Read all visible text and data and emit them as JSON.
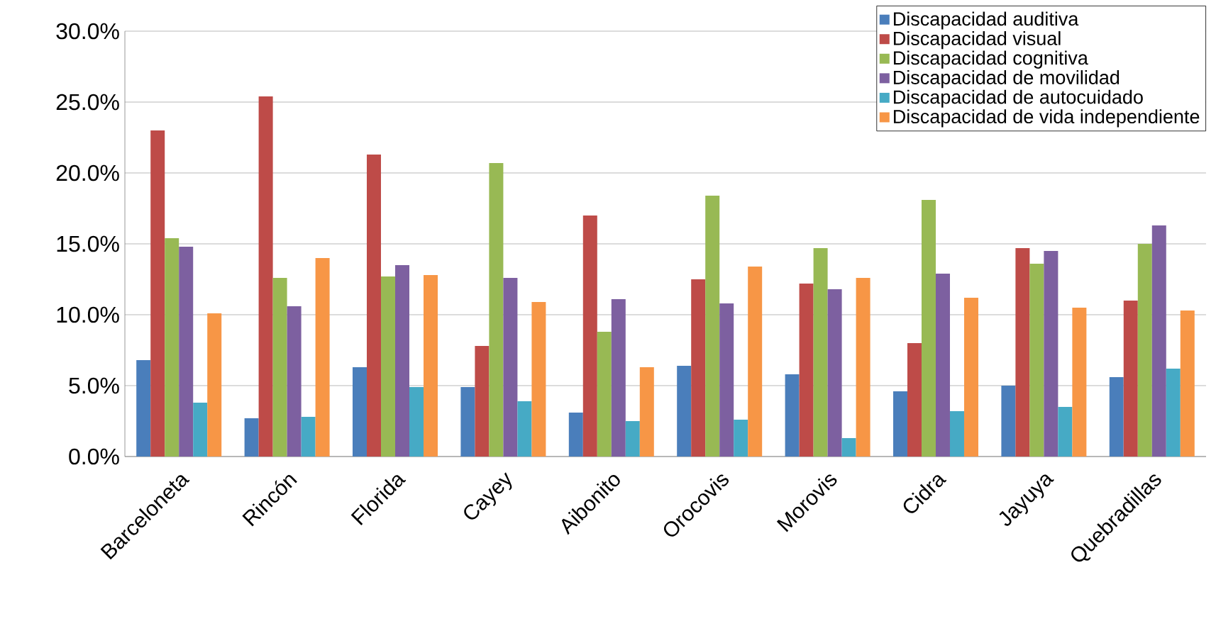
{
  "chart_data": {
    "type": "bar",
    "categories": [
      "Barceloneta",
      "Rincón",
      "Florida",
      "Cayey",
      "Aibonito",
      "Orocovis",
      "Morovis",
      "Cidra",
      "Jayuya",
      "Quebradillas"
    ],
    "series": [
      {
        "name": "Discapacidad auditiva",
        "color": "#4a7ebb",
        "values": [
          6.8,
          2.7,
          6.3,
          4.9,
          3.1,
          6.4,
          5.8,
          4.6,
          5.0,
          5.6
        ]
      },
      {
        "name": "Discapacidad visual",
        "color": "#be4b48",
        "values": [
          23.0,
          25.4,
          21.3,
          7.8,
          17.0,
          12.5,
          12.2,
          8.0,
          14.7,
          11.0
        ]
      },
      {
        "name": "Discapacidad cognitiva",
        "color": "#98b954",
        "values": [
          15.4,
          12.6,
          12.7,
          20.7,
          8.8,
          18.4,
          14.7,
          18.1,
          13.6,
          15.0
        ]
      },
      {
        "name": "Discapacidad de movilidad",
        "color": "#7d60a0",
        "values": [
          14.8,
          10.6,
          13.5,
          12.6,
          11.1,
          10.8,
          11.8,
          12.9,
          14.5,
          16.3
        ]
      },
      {
        "name": "Discapacidad de autocuidado",
        "color": "#46aac5",
        "values": [
          3.8,
          2.8,
          4.9,
          3.9,
          2.5,
          2.6,
          1.3,
          3.2,
          3.5,
          6.2
        ]
      },
      {
        "name": "Discapacidad de vida independiente",
        "color": "#f79646",
        "values": [
          10.1,
          14.0,
          12.8,
          10.9,
          6.3,
          13.4,
          12.6,
          11.2,
          10.5,
          10.3
        ]
      }
    ],
    "ylim": [
      0,
      30
    ],
    "yticks": [
      {
        "value": 0,
        "label": "0.0%"
      },
      {
        "value": 5,
        "label": "5.0%"
      },
      {
        "value": 10,
        "label": "10.0%"
      },
      {
        "value": 15,
        "label": "15.0%"
      },
      {
        "value": 20,
        "label": "20.0%"
      },
      {
        "value": 25,
        "label": "25.0%"
      },
      {
        "value": 30,
        "label": "30.0%"
      }
    ],
    "grid": "y",
    "legend": "top right"
  }
}
